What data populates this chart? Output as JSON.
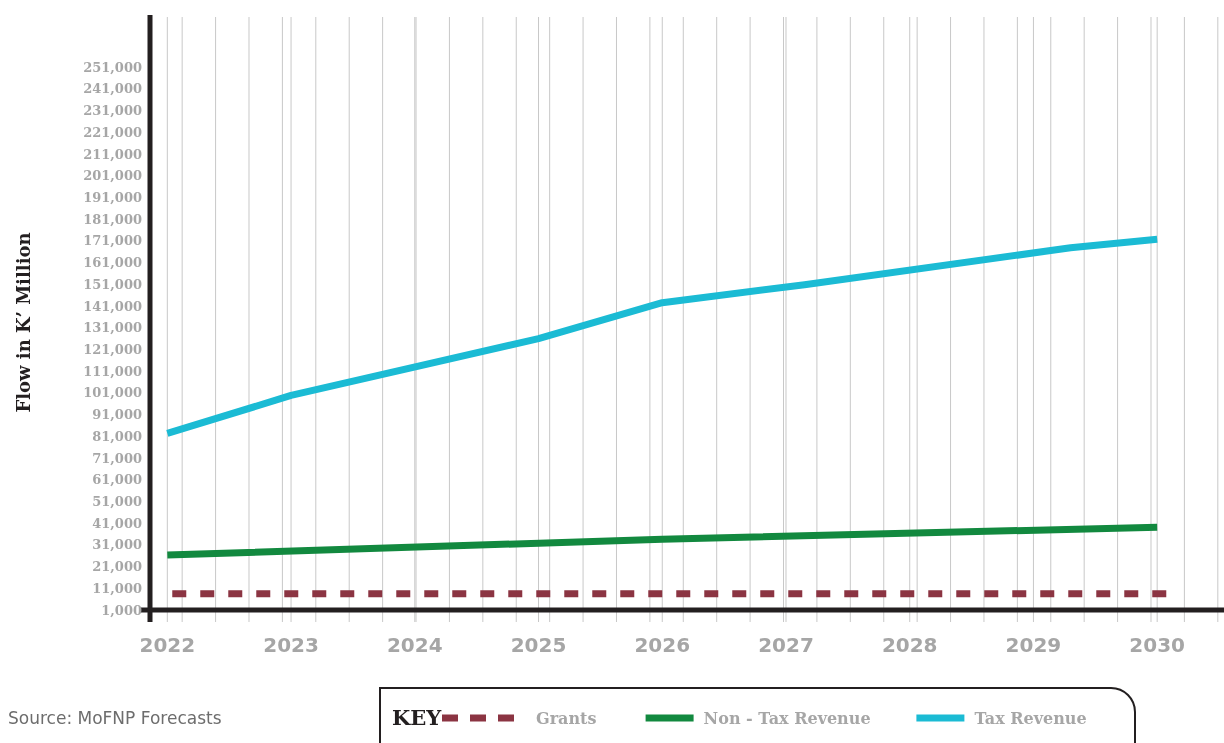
{
  "chart_data": {
    "type": "line",
    "ylabel": "Flow in K’ Million",
    "legend_title": "KEY",
    "legend": "bottom",
    "xlim": [
      2021.86,
      2030.54
    ],
    "ylim": [
      1000,
      275000
    ],
    "yticks": [
      {
        "value": 1000,
        "label": "1,000"
      },
      {
        "value": 11000,
        "label": "11,000"
      },
      {
        "value": 21000,
        "label": "21,000"
      },
      {
        "value": 31000,
        "label": "31,000"
      },
      {
        "value": 41000,
        "label": "41,000"
      },
      {
        "value": 51000,
        "label": "51,000"
      },
      {
        "value": 61000,
        "label": "61,000"
      },
      {
        "value": 71000,
        "label": "71,000"
      },
      {
        "value": 81000,
        "label": "81,000"
      },
      {
        "value": 91000,
        "label": "91,000"
      },
      {
        "value": 101000,
        "label": "101,000"
      },
      {
        "value": 111000,
        "label": "111,000"
      },
      {
        "value": 121000,
        "label": "121,000"
      },
      {
        "value": 131000,
        "label": "131,000"
      },
      {
        "value": 141000,
        "label": "141,000"
      },
      {
        "value": 151000,
        "label": "151,000"
      },
      {
        "value": 161000,
        "label": "161,000"
      },
      {
        "value": 171000,
        "label": "171,000"
      },
      {
        "value": 181000,
        "label": "181,000"
      },
      {
        "value": 191000,
        "label": "191,000"
      },
      {
        "value": 201000,
        "label": "201,000"
      },
      {
        "value": 211000,
        "label": "211,000"
      },
      {
        "value": 221000,
        "label": "221,000"
      },
      {
        "value": 231000,
        "label": "231,000"
      },
      {
        "value": 241000,
        "label": "241,000"
      },
      {
        "value": 251000,
        "label": "251,000"
      }
    ],
    "xticks": [
      2022,
      2023,
      2024,
      2025,
      2026,
      2027,
      2028,
      2029,
      2030,
      {
        "value": 2022.12,
        "label": null
      },
      {
        "value": 2022.39,
        "label": null
      },
      {
        "value": 2022.66,
        "label": null
      },
      {
        "value": 2022.93,
        "label": null
      },
      {
        "value": 2023.2,
        "label": null
      },
      {
        "value": 2023.47,
        "label": null
      },
      {
        "value": 2023.74,
        "label": null
      },
      {
        "value": 2024.01,
        "label": null
      },
      {
        "value": 2024.28,
        "label": null
      },
      {
        "value": 2024.55,
        "label": null
      },
      {
        "value": 2024.82,
        "label": null
      },
      {
        "value": 2025.09,
        "label": null
      },
      {
        "value": 2025.36,
        "label": null
      },
      {
        "value": 2025.63,
        "label": null
      },
      {
        "value": 2025.9,
        "label": null
      },
      {
        "value": 2026.17,
        "label": null
      },
      {
        "value": 2026.44,
        "label": null
      },
      {
        "value": 2026.71,
        "label": null
      },
      {
        "value": 2026.98,
        "label": null
      },
      {
        "value": 2027.25,
        "label": null
      },
      {
        "value": 2027.52,
        "label": null
      },
      {
        "value": 2027.79,
        "label": null
      },
      {
        "value": 2028.06,
        "label": null
      },
      {
        "value": 2028.33,
        "label": null
      },
      {
        "value": 2028.6,
        "label": null
      },
      {
        "value": 2028.87,
        "label": null
      },
      {
        "value": 2029.14,
        "label": null
      },
      {
        "value": 2029.41,
        "label": null
      },
      {
        "value": 2029.68,
        "label": null
      },
      {
        "value": 2029.95,
        "label": null
      },
      {
        "value": 2030.22,
        "label": null
      },
      {
        "value": 2030.49,
        "label": null
      }
    ],
    "grid": "x",
    "series": [
      {
        "name": "Grants",
        "color": "#8b3442",
        "line_style": "dashed",
        "x": [
          2022.04,
          2030.13
        ],
        "values": [
          8500,
          8500
        ]
      },
      {
        "name": "Non - Tax  Revenue",
        "color": "#12893f",
        "x": [
          2022,
          2026,
          2030
        ],
        "values": [
          26300,
          33600,
          39100
        ]
      },
      {
        "name": "Tax Revenue",
        "color": "#1bbbd4",
        "x": [
          2022,
          2023,
          2025,
          2026,
          2027.15,
          2029.3,
          2030
        ],
        "values": [
          82300,
          99800,
          126000,
          142500,
          150800,
          167800,
          171700
        ]
      }
    ],
    "annotations": [
      "Source:  MoFNP Forecasts"
    ]
  }
}
